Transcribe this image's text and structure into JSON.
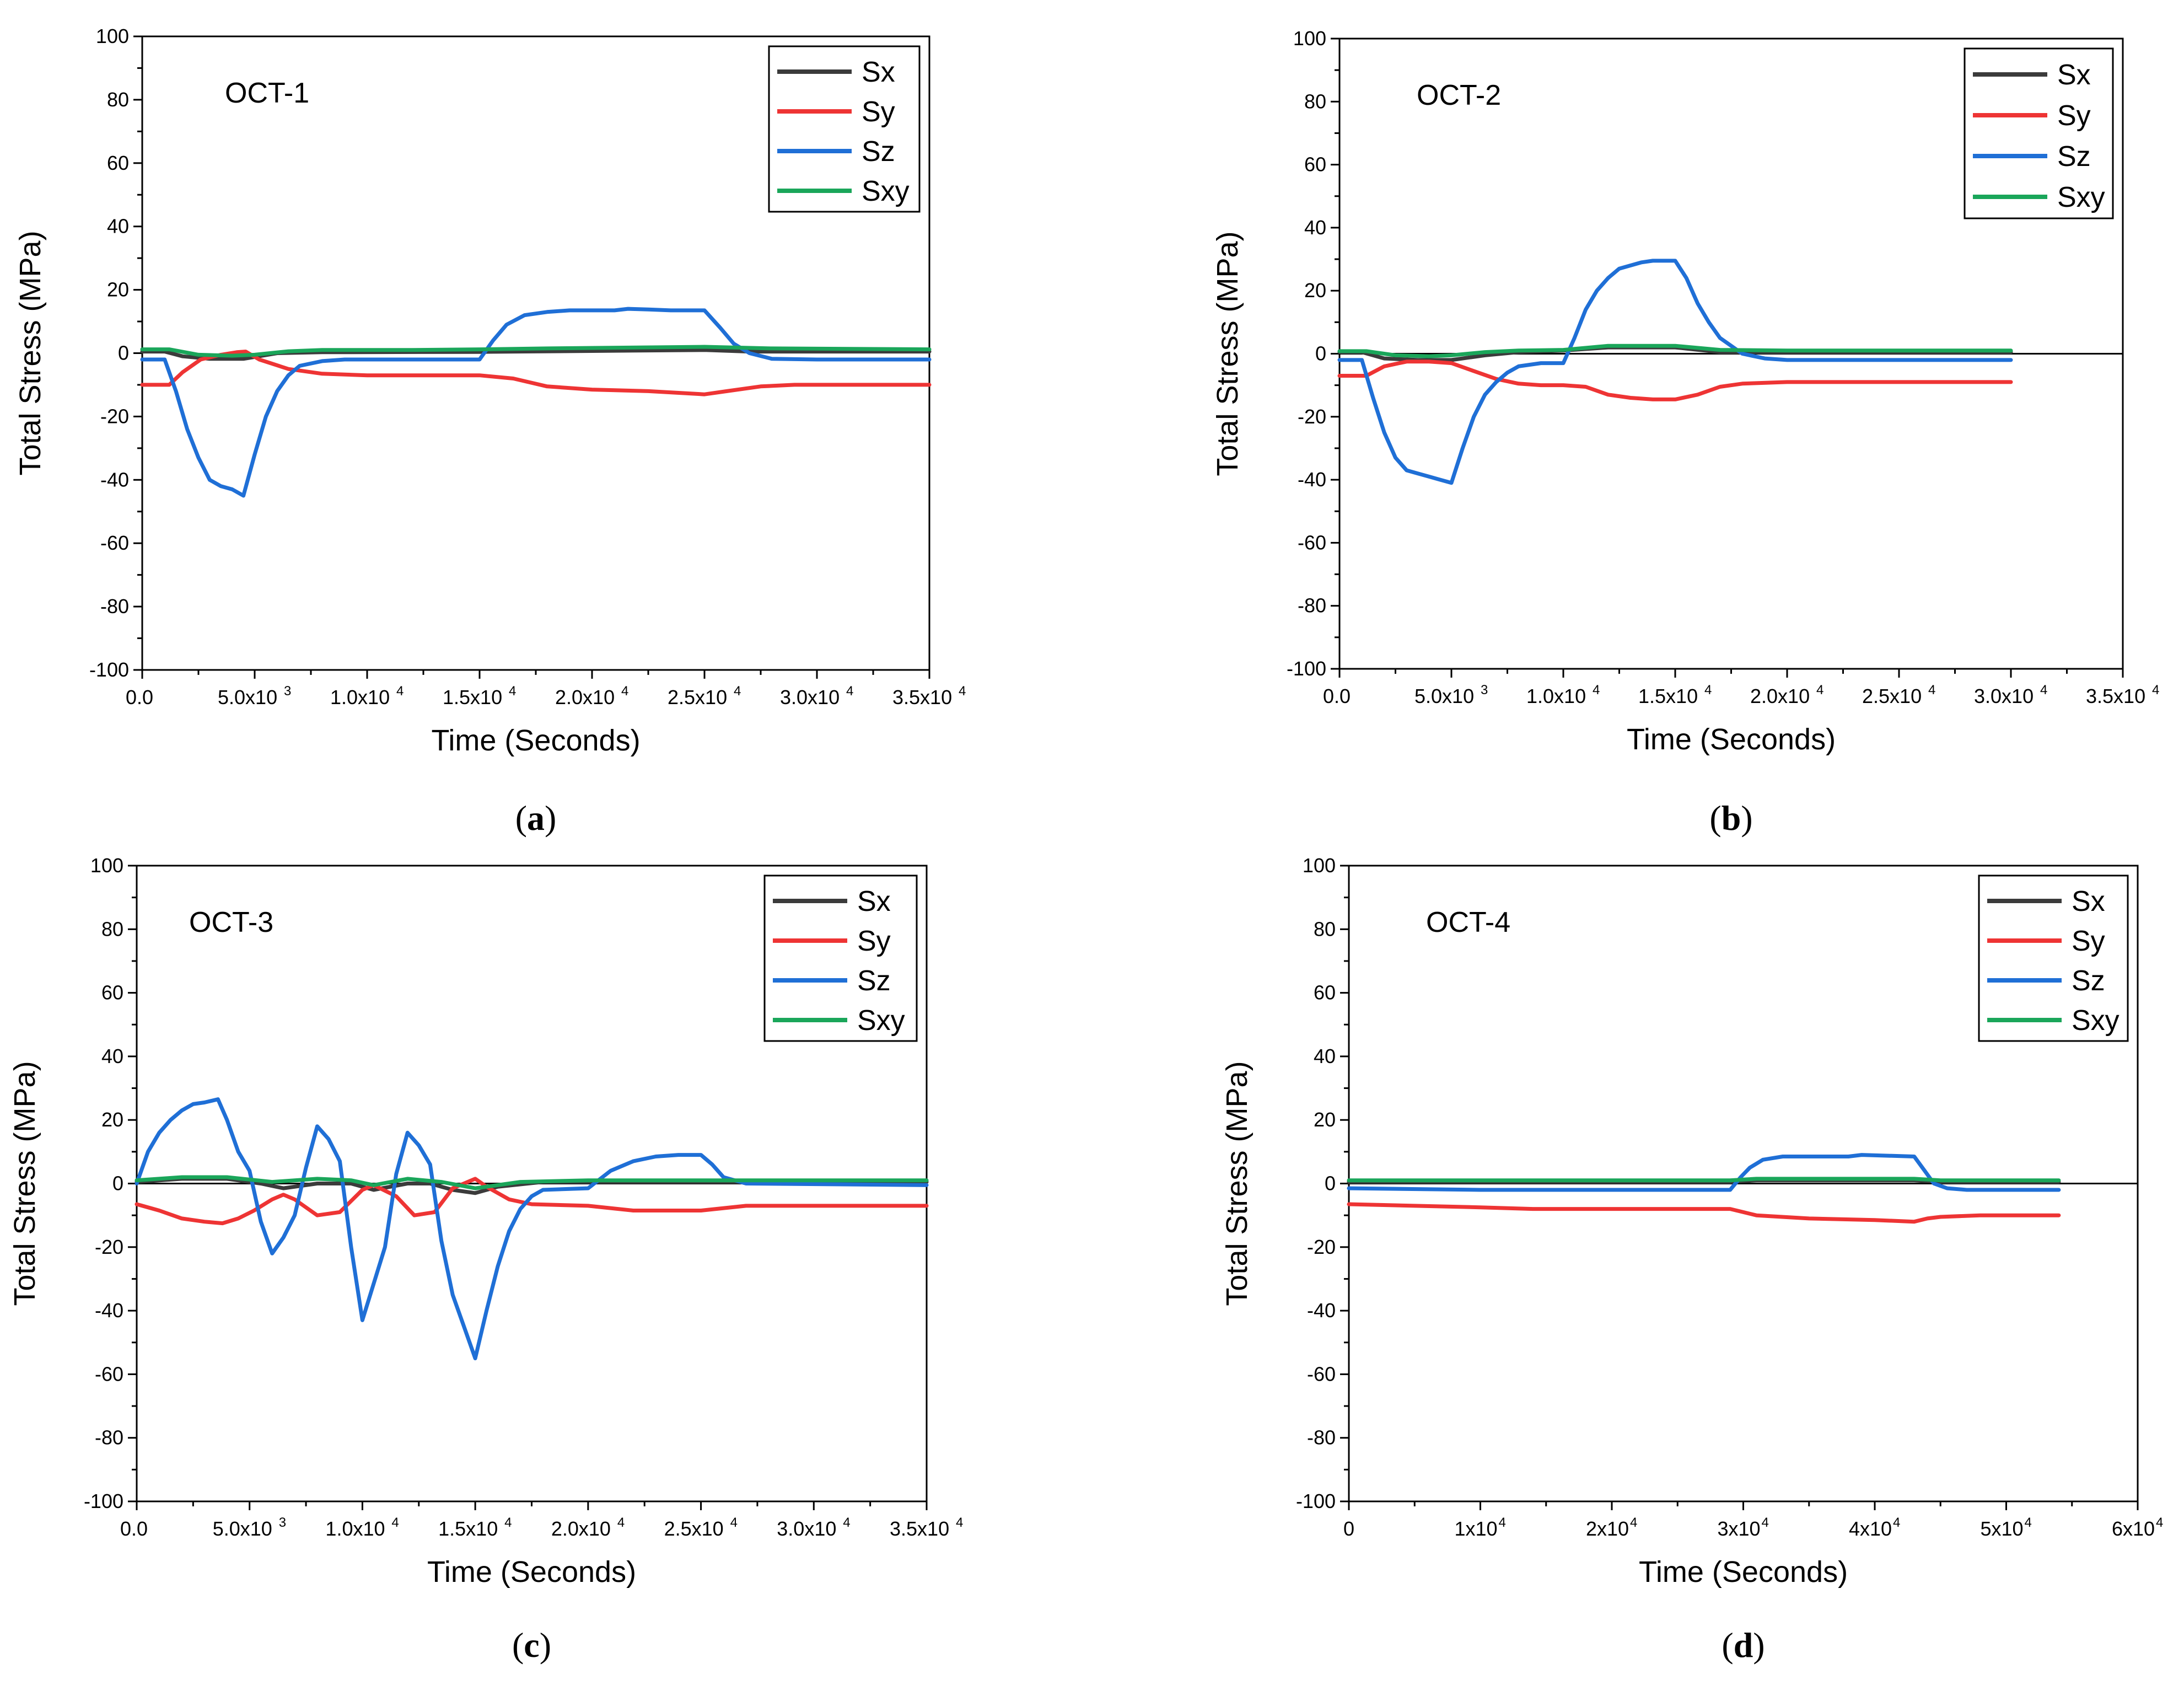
{
  "colors": {
    "Sx": "#3b3b3b",
    "Sy": "#ee3434",
    "Sz": "#1f6fd6",
    "Sxy": "#1aa65a"
  },
  "chart_data": [
    {
      "type": "line",
      "panel": "a",
      "title": "OCT-1",
      "caption": {
        "open": "(",
        "letter": "a",
        "close": ")"
      },
      "xlabel": "Time (Seconds)",
      "ylabel": "Total Stress (MPa)",
      "xlim": [
        0,
        35000
      ],
      "ylim": [
        -100,
        100
      ],
      "grid": false,
      "legend_position": "top-right",
      "zero_line": false,
      "xticks": [
        {
          "v": 0,
          "m": "0.0",
          "e": ""
        },
        {
          "v": 5000,
          "m": "5.0x10",
          "e": "3"
        },
        {
          "v": 10000,
          "m": "1.0x10",
          "e": "4"
        },
        {
          "v": 15000,
          "m": "1.5x10",
          "e": "4"
        },
        {
          "v": 20000,
          "m": "2.0x10",
          "e": "4"
        },
        {
          "v": 25000,
          "m": "2.5x10",
          "e": "4"
        },
        {
          "v": 30000,
          "m": "3.0x10",
          "e": "4"
        },
        {
          "v": 35000,
          "m": "3.5x10",
          "e": "4"
        }
      ],
      "yticks": [
        100,
        80,
        60,
        40,
        20,
        0,
        -20,
        -40,
        -60,
        -80,
        -100
      ],
      "series": [
        {
          "name": "Sx",
          "x": [
            0,
            1000,
            1800,
            3000,
            4500,
            6000,
            8000,
            15000,
            25000,
            27000,
            35000
          ],
          "y": [
            0.5,
            0.5,
            -1,
            -1.8,
            -1.8,
            0,
            0.3,
            0.4,
            1,
            0.5,
            0.5
          ]
        },
        {
          "name": "Sy",
          "x": [
            0,
            1200,
            1800,
            2600,
            3500,
            4200,
            4600,
            5200,
            6500,
            8000,
            10000,
            15000,
            16500,
            18000,
            20000,
            22500,
            25000,
            26000,
            27500,
            29000,
            35000
          ],
          "y": [
            -10,
            -10,
            -6,
            -2,
            -0.5,
            0.3,
            0.5,
            -2,
            -5,
            -6.5,
            -7,
            -7,
            -8,
            -10.5,
            -11.5,
            -12,
            -13,
            -12,
            -10.5,
            -10,
            -10
          ]
        },
        {
          "name": "Sz",
          "x": [
            0,
            1000,
            1500,
            2000,
            2500,
            3000,
            3500,
            4000,
            4500,
            5000,
            5500,
            6000,
            6500,
            7000,
            8000,
            9000,
            10000,
            15000,
            15600,
            16200,
            17000,
            18000,
            19000,
            20000,
            21000,
            21600,
            22500,
            23500,
            25000,
            25700,
            26300,
            27000,
            28000,
            30000,
            35000
          ],
          "y": [
            -2,
            -2,
            -12,
            -24,
            -33,
            -40,
            -42,
            -43,
            -45,
            -32,
            -20,
            -12,
            -7,
            -4,
            -2.5,
            -2,
            -2,
            -2,
            4,
            9,
            12,
            13,
            13.5,
            13.5,
            13.5,
            14,
            13.8,
            13.5,
            13.5,
            8,
            3,
            0,
            -1.8,
            -2,
            -2
          ]
        },
        {
          "name": "Sxy",
          "x": [
            0,
            1200,
            2500,
            4000,
            5000,
            6500,
            8000,
            12000,
            15000,
            18000,
            22000,
            25000,
            28000,
            35000
          ],
          "y": [
            1.2,
            1.2,
            -0.5,
            -0.8,
            -0.5,
            0.6,
            1,
            1,
            1.2,
            1.5,
            1.8,
            2,
            1.5,
            1.2
          ]
        }
      ]
    },
    {
      "type": "line",
      "panel": "b",
      "title": "OCT-2",
      "caption": {
        "open": "(",
        "letter": "b",
        "close": ")"
      },
      "xlabel": "Time (Seconds)",
      "ylabel": "Total Stress (MPa)",
      "xlim": [
        0,
        35000
      ],
      "ylim": [
        -100,
        100
      ],
      "grid": false,
      "legend_position": "top-right",
      "zero_line": true,
      "xticks": [
        {
          "v": 0,
          "m": "0.0",
          "e": ""
        },
        {
          "v": 5000,
          "m": "5.0x10",
          "e": "3"
        },
        {
          "v": 10000,
          "m": "1.0x10",
          "e": "4"
        },
        {
          "v": 15000,
          "m": "1.5x10",
          "e": "4"
        },
        {
          "v": 20000,
          "m": "2.0x10",
          "e": "4"
        },
        {
          "v": 25000,
          "m": "2.5x10",
          "e": "4"
        },
        {
          "v": 30000,
          "m": "3.0x10",
          "e": "4"
        },
        {
          "v": 35000,
          "m": "3.5x10",
          "e": "4"
        }
      ],
      "yticks": [
        100,
        80,
        60,
        40,
        20,
        0,
        -20,
        -40,
        -60,
        -80,
        -100
      ],
      "series": [
        {
          "name": "Sx",
          "x": [
            0,
            1000,
            2000,
            3500,
            5000,
            6500,
            8000,
            10000,
            12000,
            15000,
            17000,
            20000,
            30000
          ],
          "y": [
            0.5,
            0.5,
            -1.5,
            -2,
            -2,
            -0.5,
            0.5,
            1,
            2,
            2,
            0.5,
            0.5,
            0.5
          ]
        },
        {
          "name": "Sy",
          "x": [
            0,
            1200,
            2000,
            3000,
            4000,
            5000,
            5800,
            7000,
            8000,
            9000,
            10000,
            11000,
            12000,
            13000,
            14000,
            15000,
            16000,
            17000,
            18000,
            20000,
            30000
          ],
          "y": [
            -7,
            -7,
            -4,
            -2.5,
            -2.5,
            -3,
            -5,
            -8,
            -9.5,
            -10,
            -10,
            -10.5,
            -13,
            -14,
            -14.5,
            -14.5,
            -13,
            -10.5,
            -9.5,
            -9,
            -9
          ]
        },
        {
          "name": "Sz",
          "x": [
            0,
            1000,
            1500,
            2000,
            2500,
            3000,
            3500,
            4000,
            4500,
            5000,
            5500,
            6000,
            6500,
            7000,
            7500,
            8000,
            9000,
            10000,
            10500,
            11000,
            11500,
            12000,
            12500,
            13000,
            13500,
            14000,
            15000,
            15500,
            16000,
            16500,
            17000,
            18000,
            19000,
            20000,
            30000
          ],
          "y": [
            -2,
            -2,
            -14,
            -25,
            -33,
            -37,
            -38,
            -39,
            -40,
            -41,
            -30,
            -20,
            -13,
            -9,
            -6,
            -4,
            -3,
            -3,
            5,
            14,
            20,
            24,
            27,
            28,
            29,
            29.5,
            29.5,
            24,
            16,
            10,
            5,
            0,
            -1.5,
            -2,
            -2
          ]
        },
        {
          "name": "Sxy",
          "x": [
            0,
            1200,
            2500,
            4000,
            5000,
            6500,
            8000,
            10000,
            12000,
            15000,
            17000,
            20000,
            30000
          ],
          "y": [
            0.8,
            0.8,
            -0.5,
            -0.8,
            -0.5,
            0.5,
            1,
            1.2,
            2.5,
            2.5,
            1.2,
            1,
            1
          ]
        }
      ]
    },
    {
      "type": "line",
      "panel": "c",
      "title": "OCT-3",
      "caption": {
        "open": "(",
        "letter": "c",
        "close": ")"
      },
      "xlabel": "Time (Seconds)",
      "ylabel": "Total Stress (MPa)",
      "xlim": [
        0,
        35000
      ],
      "ylim": [
        -100,
        100
      ],
      "grid": false,
      "legend_position": "top-right",
      "zero_line": true,
      "xticks": [
        {
          "v": 0,
          "m": "0.0",
          "e": ""
        },
        {
          "v": 5000,
          "m": "5.0x10",
          "e": "3"
        },
        {
          "v": 10000,
          "m": "1.0x10",
          "e": "4"
        },
        {
          "v": 15000,
          "m": "1.5x10",
          "e": "4"
        },
        {
          "v": 20000,
          "m": "2.0x10",
          "e": "4"
        },
        {
          "v": 25000,
          "m": "2.5x10",
          "e": "4"
        },
        {
          "v": 30000,
          "m": "3.0x10",
          "e": "4"
        },
        {
          "v": 35000,
          "m": "3.5x10",
          "e": "4"
        }
      ],
      "yticks": [
        100,
        80,
        60,
        40,
        20,
        0,
        -20,
        -40,
        -60,
        -80,
        -100
      ],
      "series": [
        {
          "name": "Sx",
          "x": [
            0,
            2000,
            4000,
            5500,
            6500,
            8000,
            9500,
            10500,
            12000,
            13000,
            14000,
            15000,
            16000,
            18000,
            22000,
            35000
          ],
          "y": [
            0.5,
            1.5,
            1.5,
            0,
            -1.5,
            0,
            0,
            -2,
            0,
            0,
            -2,
            -3,
            -1,
            0.5,
            0.5,
            0.5
          ]
        },
        {
          "name": "Sy",
          "x": [
            0,
            1000,
            2000,
            3000,
            3800,
            4500,
            5200,
            6000,
            6500,
            7000,
            8000,
            9000,
            10000,
            10500,
            11500,
            12300,
            13200,
            14000,
            15000,
            15500,
            16500,
            17500,
            20000,
            22000,
            25000,
            27000,
            35000
          ],
          "y": [
            -6.5,
            -8.5,
            -11,
            -12,
            -12.5,
            -11,
            -8.5,
            -5,
            -3.5,
            -5,
            -10,
            -9,
            -2,
            -0.5,
            -4,
            -10,
            -9,
            -1.5,
            1.5,
            -1,
            -5,
            -6.5,
            -7,
            -8.5,
            -8.5,
            -7,
            -7
          ]
        },
        {
          "name": "Sz",
          "x": [
            0,
            500,
            1000,
            1500,
            2000,
            2500,
            3000,
            3600,
            4000,
            4500,
            5000,
            5500,
            6000,
            6500,
            7000,
            7500,
            8000,
            8500,
            9000,
            9500,
            10000,
            11000,
            11500,
            12000,
            12500,
            13000,
            13500,
            14000,
            14500,
            15000,
            15500,
            16000,
            16500,
            17000,
            17500,
            18000,
            20000,
            21000,
            22000,
            23000,
            24000,
            25000,
            25500,
            26000,
            27000,
            35000
          ],
          "y": [
            0,
            10,
            16,
            20,
            23,
            25,
            25.5,
            26.5,
            20,
            10,
            4,
            -12,
            -22,
            -17,
            -10,
            5,
            18,
            14,
            7,
            -20,
            -43,
            -20,
            3,
            16,
            12,
            6,
            -18,
            -35,
            -45,
            -55,
            -40,
            -26,
            -15,
            -8,
            -4,
            -2,
            -1.5,
            4,
            7,
            8.5,
            9,
            9,
            6,
            2,
            0,
            -0.5
          ]
        },
        {
          "name": "Sxy",
          "x": [
            0,
            2000,
            4000,
            6000,
            8000,
            9500,
            10500,
            12000,
            13500,
            15000,
            17000,
            20000,
            25000,
            35000
          ],
          "y": [
            1,
            2,
            2,
            0.5,
            1.5,
            1,
            -0.5,
            1.5,
            0.5,
            -1.5,
            0.5,
            1,
            1,
            1
          ]
        }
      ]
    },
    {
      "type": "line",
      "panel": "d",
      "title": "OCT-4",
      "caption": {
        "open": "(",
        "letter": "d",
        "close": ")"
      },
      "xlabel": "Time (Seconds)",
      "ylabel": "Total Stress (MPa)",
      "xlim": [
        0,
        60000
      ],
      "ylim": [
        -100,
        100
      ],
      "grid": false,
      "legend_position": "top-right",
      "zero_line": true,
      "xticks": [
        {
          "v": 0,
          "m": "0",
          "e": ""
        },
        {
          "v": 10000,
          "m": "1x10",
          "e": "4"
        },
        {
          "v": 20000,
          "m": "2x10",
          "e": "4"
        },
        {
          "v": 30000,
          "m": "3x10",
          "e": "4"
        },
        {
          "v": 40000,
          "m": "4x10",
          "e": "4"
        },
        {
          "v": 50000,
          "m": "5x10",
          "e": "4"
        },
        {
          "v": 60000,
          "m": "6x10",
          "e": "4"
        }
      ],
      "yticks": [
        100,
        80,
        60,
        40,
        20,
        0,
        -20,
        -40,
        -60,
        -80,
        -100
      ],
      "series": [
        {
          "name": "Sx",
          "x": [
            0,
            10000,
            29000,
            31000,
            43000,
            45000,
            54000
          ],
          "y": [
            0.5,
            0.5,
            0.5,
            1,
            1,
            0.5,
            0.5
          ]
        },
        {
          "name": "Sy",
          "x": [
            0,
            5000,
            10000,
            14000,
            20000,
            29000,
            30000,
            31000,
            35000,
            40000,
            43000,
            44000,
            45000,
            48000,
            54000
          ],
          "y": [
            -6.5,
            -7,
            -7.5,
            -8,
            -8,
            -8,
            -9,
            -10,
            -11,
            -11.5,
            -12,
            -11,
            -10.5,
            -10,
            -10
          ]
        },
        {
          "name": "Sz",
          "x": [
            0,
            10000,
            20000,
            29000,
            29800,
            30500,
            31500,
            33000,
            36000,
            38000,
            39000,
            43000,
            43800,
            44500,
            45500,
            47000,
            54000
          ],
          "y": [
            -1.5,
            -2,
            -2,
            -2,
            2,
            5,
            7.5,
            8.5,
            8.5,
            8.5,
            9,
            8.5,
            4,
            0,
            -1.5,
            -2,
            -2
          ]
        },
        {
          "name": "Sxy",
          "x": [
            0,
            10000,
            29000,
            31000,
            43000,
            45000,
            54000
          ],
          "y": [
            1,
            1,
            1,
            1.5,
            1.5,
            1,
            1
          ]
        }
      ]
    }
  ]
}
